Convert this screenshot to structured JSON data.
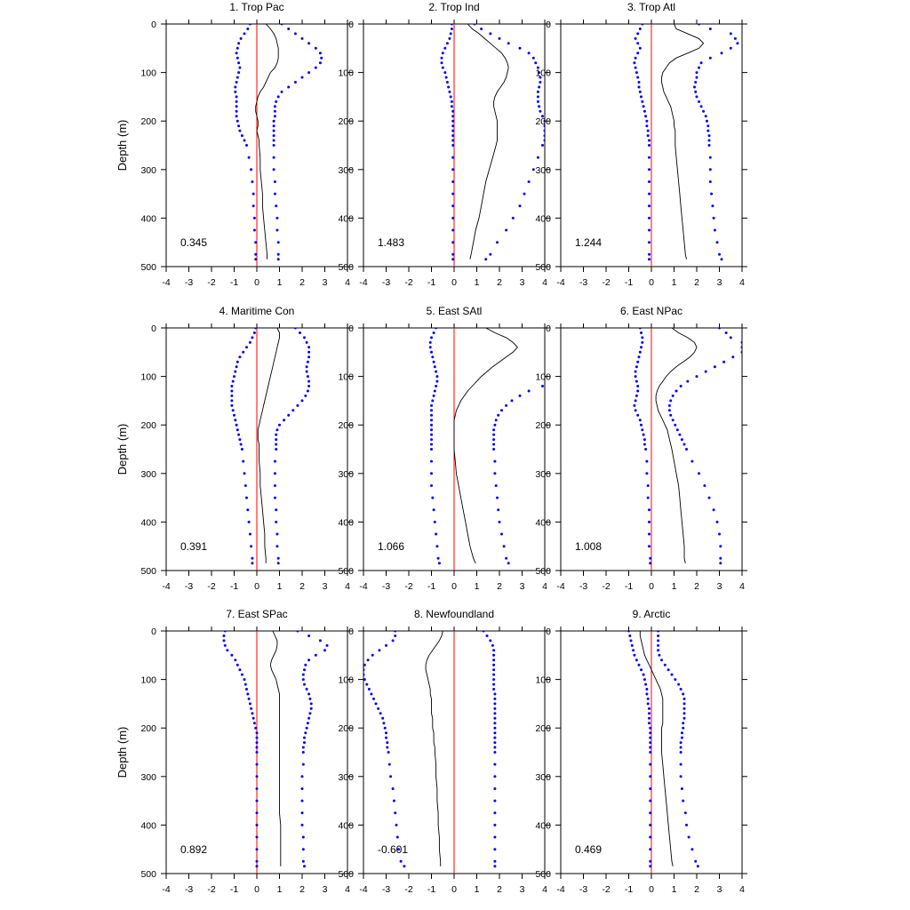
{
  "chart_data": {
    "type": "line",
    "figure_ylabel": "Depth (m)",
    "xlim": [
      -4,
      4
    ],
    "xticks": [
      -4,
      -3,
      -2,
      -1,
      0,
      1,
      2,
      3,
      4
    ],
    "ylim": [
      0,
      500
    ],
    "yticks": [
      0,
      100,
      200,
      300,
      400,
      500
    ],
    "y_inverted": true,
    "colors": {
      "mean": "#000000",
      "bounds": "#0000ff",
      "zero_line": "#ff0000"
    },
    "depth": [
      0,
      10,
      20,
      30,
      40,
      50,
      60,
      70,
      80,
      90,
      100,
      110,
      120,
      130,
      140,
      150,
      160,
      170,
      180,
      190,
      200,
      210,
      220,
      230,
      240,
      250,
      275,
      300,
      325,
      350,
      375,
      400,
      425,
      450,
      475,
      485
    ],
    "panels": [
      {
        "title": "1. Trop Pac",
        "annotation": "0.345",
        "show_ylabel": true,
        "mean": [
          0.4,
          0.6,
          0.75,
          0.85,
          0.9,
          0.95,
          0.95,
          0.95,
          0.9,
          0.8,
          0.6,
          0.5,
          0.4,
          0.3,
          0.15,
          0.05,
          0.0,
          -0.05,
          -0.05,
          0.0,
          0.05,
          0.05,
          0.0,
          0.05,
          0.1,
          0.1,
          0.15,
          0.15,
          0.2,
          0.25,
          0.25,
          0.3,
          0.35,
          0.4,
          0.45,
          0.45
        ],
        "upper": [
          1.1,
          1.4,
          1.7,
          2.0,
          2.3,
          2.6,
          2.8,
          2.85,
          2.8,
          2.6,
          2.3,
          2.0,
          1.7,
          1.4,
          1.1,
          0.95,
          0.85,
          0.8,
          0.8,
          0.8,
          0.75,
          0.75,
          0.75,
          0.75,
          0.75,
          0.75,
          0.75,
          0.75,
          0.8,
          0.8,
          0.85,
          0.9,
          0.9,
          0.95,
          0.95,
          0.95
        ],
        "lower": [
          -0.3,
          -0.4,
          -0.55,
          -0.7,
          -0.8,
          -0.85,
          -0.9,
          -0.85,
          -0.8,
          -0.75,
          -0.8,
          -0.85,
          -0.9,
          -0.95,
          -0.95,
          -0.9,
          -0.9,
          -0.9,
          -0.9,
          -0.9,
          -0.85,
          -0.8,
          -0.75,
          -0.65,
          -0.55,
          -0.45,
          -0.35,
          -0.25,
          -0.2,
          -0.15,
          -0.15,
          -0.1,
          -0.1,
          -0.05,
          -0.05,
          -0.05
        ]
      },
      {
        "title": "2. Trop Ind",
        "annotation": "1.483",
        "show_ylabel": false,
        "mean": [
          0.6,
          0.8,
          1.1,
          1.35,
          1.6,
          1.85,
          2.1,
          2.25,
          2.35,
          2.4,
          2.35,
          2.3,
          2.2,
          2.05,
          1.9,
          1.8,
          1.75,
          1.75,
          1.8,
          1.85,
          1.9,
          1.9,
          1.9,
          1.9,
          1.9,
          1.85,
          1.7,
          1.55,
          1.4,
          1.3,
          1.2,
          1.1,
          0.95,
          0.85,
          0.75,
          0.7
        ],
        "upper": [
          0.9,
          1.2,
          1.6,
          2.0,
          2.4,
          2.9,
          3.3,
          3.5,
          3.6,
          3.7,
          3.75,
          3.8,
          3.8,
          3.75,
          3.7,
          3.7,
          3.7,
          3.75,
          3.8,
          3.9,
          4.0,
          4.0,
          4.0,
          4.0,
          4.0,
          3.9,
          3.7,
          3.5,
          3.3,
          3.1,
          2.9,
          2.6,
          2.3,
          1.9,
          1.6,
          1.4
        ],
        "lower": [
          -0.1,
          -0.1,
          -0.15,
          -0.2,
          -0.3,
          -0.4,
          -0.5,
          -0.55,
          -0.55,
          -0.5,
          -0.4,
          -0.35,
          -0.3,
          -0.25,
          -0.2,
          -0.15,
          -0.1,
          -0.1,
          -0.05,
          -0.05,
          -0.05,
          -0.05,
          -0.05,
          -0.05,
          -0.05,
          -0.05,
          -0.05,
          -0.05,
          -0.05,
          -0.05,
          -0.05,
          -0.05,
          -0.05,
          -0.05,
          -0.05,
          -0.05
        ]
      },
      {
        "title": "3. Trop Atl",
        "annotation": "1.244",
        "show_ylabel": false,
        "mean": [
          1.0,
          1.1,
          1.6,
          2.1,
          2.3,
          2.1,
          1.6,
          1.1,
          0.8,
          0.65,
          0.5,
          0.45,
          0.45,
          0.5,
          0.55,
          0.65,
          0.75,
          0.85,
          0.9,
          0.95,
          1.0,
          1.0,
          1.05,
          1.05,
          1.05,
          1.05,
          1.1,
          1.15,
          1.2,
          1.25,
          1.3,
          1.35,
          1.4,
          1.45,
          1.5,
          1.55
        ],
        "upper": [
          2.1,
          2.6,
          3.5,
          3.7,
          3.8,
          3.5,
          3.1,
          2.6,
          2.2,
          2.1,
          2.0,
          2.0,
          1.95,
          1.9,
          1.95,
          2.0,
          2.1,
          2.2,
          2.3,
          2.4,
          2.45,
          2.5,
          2.5,
          2.55,
          2.55,
          2.55,
          2.6,
          2.6,
          2.6,
          2.65,
          2.7,
          2.75,
          2.8,
          2.9,
          3.0,
          3.1
        ],
        "lower": [
          -0.4,
          -0.5,
          -0.6,
          -0.7,
          -0.6,
          -0.5,
          -0.6,
          -0.7,
          -0.75,
          -0.7,
          -0.65,
          -0.6,
          -0.55,
          -0.55,
          -0.5,
          -0.45,
          -0.4,
          -0.35,
          -0.3,
          -0.25,
          -0.2,
          -0.2,
          -0.15,
          -0.15,
          -0.1,
          -0.1,
          -0.1,
          -0.1,
          -0.1,
          -0.1,
          -0.1,
          -0.1,
          -0.1,
          -0.1,
          -0.1,
          -0.1
        ]
      },
      {
        "title": "4. Maritime Con",
        "annotation": "0.391",
        "show_ylabel": true,
        "mean": [
          0.9,
          1.0,
          1.0,
          0.95,
          0.9,
          0.85,
          0.8,
          0.75,
          0.7,
          0.65,
          0.6,
          0.55,
          0.5,
          0.45,
          0.4,
          0.35,
          0.3,
          0.25,
          0.2,
          0.15,
          0.1,
          0.05,
          0.05,
          0.05,
          0.1,
          0.1,
          0.1,
          0.15,
          0.15,
          0.2,
          0.25,
          0.3,
          0.35,
          0.35,
          0.4,
          0.4
        ],
        "upper": [
          1.7,
          1.9,
          2.1,
          2.2,
          2.3,
          2.3,
          2.3,
          2.25,
          2.2,
          2.2,
          2.25,
          2.3,
          2.3,
          2.25,
          2.15,
          2.0,
          1.8,
          1.6,
          1.4,
          1.2,
          1.0,
          0.9,
          0.85,
          0.85,
          0.85,
          0.85,
          0.8,
          0.8,
          0.8,
          0.8,
          0.85,
          0.85,
          0.9,
          0.9,
          0.95,
          0.95
        ],
        "lower": [
          -0.05,
          -0.1,
          -0.2,
          -0.3,
          -0.45,
          -0.6,
          -0.75,
          -0.85,
          -0.9,
          -0.95,
          -1.0,
          -1.05,
          -1.1,
          -1.1,
          -1.1,
          -1.1,
          -1.1,
          -1.05,
          -1.0,
          -0.95,
          -0.9,
          -0.85,
          -0.8,
          -0.75,
          -0.7,
          -0.65,
          -0.6,
          -0.55,
          -0.5,
          -0.45,
          -0.4,
          -0.35,
          -0.3,
          -0.25,
          -0.2,
          -0.2
        ]
      },
      {
        "title": "5. East SAtl",
        "annotation": "1.066",
        "show_ylabel": false,
        "mean": [
          1.4,
          1.8,
          2.3,
          2.6,
          2.8,
          2.6,
          2.3,
          2.0,
          1.7,
          1.45,
          1.2,
          1.0,
          0.8,
          0.6,
          0.45,
          0.3,
          0.2,
          0.1,
          0.05,
          0.0,
          0.0,
          0.0,
          0.0,
          0.0,
          0.0,
          0.0,
          0.05,
          0.1,
          0.2,
          0.3,
          0.4,
          0.5,
          0.6,
          0.7,
          0.85,
          0.95
        ],
        "upper": [
          5.0,
          5.0,
          5.0,
          5.0,
          5.0,
          5.0,
          5.0,
          5.0,
          5.0,
          5.0,
          5.0,
          4.5,
          3.9,
          3.3,
          2.9,
          2.55,
          2.3,
          2.1,
          1.95,
          1.85,
          1.8,
          1.75,
          1.75,
          1.75,
          1.75,
          1.75,
          1.8,
          1.8,
          1.85,
          1.9,
          1.95,
          2.0,
          2.1,
          2.2,
          2.3,
          2.4
        ],
        "lower": [
          -0.8,
          -0.9,
          -1.0,
          -1.05,
          -1.05,
          -1.0,
          -0.95,
          -0.9,
          -0.85,
          -0.8,
          -0.75,
          -0.75,
          -0.8,
          -0.85,
          -0.9,
          -0.95,
          -1.0,
          -1.0,
          -1.0,
          -1.0,
          -1.0,
          -1.0,
          -1.0,
          -1.0,
          -1.0,
          -1.0,
          -1.0,
          -1.0,
          -1.0,
          -0.95,
          -0.9,
          -0.85,
          -0.8,
          -0.75,
          -0.7,
          -0.65
        ]
      },
      {
        "title": "6. East NPac",
        "annotation": "1.008",
        "show_ylabel": false,
        "mean": [
          0.9,
          1.2,
          1.6,
          1.9,
          2.0,
          1.9,
          1.7,
          1.4,
          1.1,
          0.85,
          0.65,
          0.5,
          0.35,
          0.25,
          0.2,
          0.2,
          0.25,
          0.3,
          0.4,
          0.5,
          0.6,
          0.7,
          0.75,
          0.8,
          0.85,
          0.9,
          1.0,
          1.1,
          1.2,
          1.25,
          1.3,
          1.35,
          1.4,
          1.45,
          1.45,
          1.5
        ],
        "upper": [
          3.0,
          3.3,
          3.5,
          4.0,
          4.0,
          4.0,
          3.6,
          3.2,
          2.8,
          2.4,
          2.0,
          1.6,
          1.3,
          1.1,
          0.95,
          0.85,
          0.8,
          0.8,
          0.85,
          0.95,
          1.05,
          1.15,
          1.25,
          1.35,
          1.45,
          1.55,
          1.8,
          2.1,
          2.35,
          2.55,
          2.75,
          2.9,
          3.0,
          3.05,
          3.05,
          3.05
        ],
        "lower": [
          -0.5,
          -0.45,
          -0.4,
          -0.4,
          -0.45,
          -0.5,
          -0.55,
          -0.6,
          -0.65,
          -0.7,
          -0.7,
          -0.65,
          -0.6,
          -0.6,
          -0.65,
          -0.7,
          -0.75,
          -0.7,
          -0.6,
          -0.5,
          -0.45,
          -0.4,
          -0.35,
          -0.3,
          -0.3,
          -0.25,
          -0.2,
          -0.2,
          -0.15,
          -0.15,
          -0.1,
          -0.1,
          -0.1,
          -0.1,
          -0.05,
          -0.05
        ]
      },
      {
        "title": "7. East SPac",
        "annotation": "0.892",
        "show_ylabel": true,
        "mean": [
          0.7,
          0.8,
          0.9,
          0.9,
          0.85,
          0.75,
          0.65,
          0.6,
          0.65,
          0.75,
          0.85,
          0.9,
          0.95,
          1.0,
          1.0,
          1.0,
          1.0,
          1.0,
          1.0,
          1.0,
          1.0,
          1.0,
          1.0,
          1.0,
          1.0,
          1.0,
          1.0,
          1.0,
          1.0,
          1.0,
          1.0,
          1.05,
          1.05,
          1.05,
          1.05,
          1.05
        ],
        "upper": [
          1.8,
          2.3,
          2.8,
          3.1,
          3.0,
          2.6,
          2.3,
          2.15,
          2.1,
          2.05,
          2.05,
          2.1,
          2.2,
          2.3,
          2.35,
          2.4,
          2.4,
          2.35,
          2.3,
          2.25,
          2.2,
          2.15,
          2.1,
          2.1,
          2.05,
          2.05,
          2.05,
          2.0,
          2.0,
          2.0,
          2.0,
          2.0,
          2.05,
          2.05,
          2.05,
          2.1
        ],
        "lower": [
          -1.4,
          -1.45,
          -1.45,
          -1.4,
          -1.3,
          -1.1,
          -0.95,
          -0.85,
          -0.75,
          -0.65,
          -0.55,
          -0.5,
          -0.45,
          -0.4,
          -0.35,
          -0.3,
          -0.25,
          -0.2,
          -0.15,
          -0.1,
          -0.05,
          0.0,
          0.0,
          0.0,
          0.0,
          0.0,
          0.0,
          0.0,
          0.0,
          0.0,
          0.0,
          0.0,
          0.0,
          0.0,
          0.0,
          0.0
        ]
      },
      {
        "title": "8. Newfoundland",
        "annotation": "-0.601",
        "show_ylabel": false,
        "mean": [
          -0.5,
          -0.55,
          -0.65,
          -0.8,
          -0.95,
          -1.1,
          -1.2,
          -1.25,
          -1.25,
          -1.2,
          -1.15,
          -1.1,
          -1.05,
          -1.05,
          -1.0,
          -1.0,
          -1.0,
          -1.0,
          -0.95,
          -0.95,
          -0.95,
          -0.9,
          -0.9,
          -0.9,
          -0.85,
          -0.85,
          -0.8,
          -0.8,
          -0.75,
          -0.75,
          -0.7,
          -0.7,
          -0.65,
          -0.65,
          -0.6,
          -0.6
        ],
        "upper": [
          1.3,
          1.45,
          1.6,
          1.7,
          1.75,
          1.75,
          1.75,
          1.75,
          1.75,
          1.75,
          1.75,
          1.75,
          1.75,
          1.8,
          1.8,
          1.8,
          1.8,
          1.8,
          1.8,
          1.8,
          1.8,
          1.8,
          1.8,
          1.8,
          1.8,
          1.8,
          1.8,
          1.8,
          1.8,
          1.8,
          1.8,
          1.8,
          1.8,
          1.8,
          1.8,
          1.8
        ],
        "lower": [
          -2.6,
          -2.6,
          -2.7,
          -3.0,
          -3.3,
          -3.6,
          -3.8,
          -3.95,
          -4.0,
          -4.0,
          -3.95,
          -3.85,
          -3.75,
          -3.65,
          -3.55,
          -3.45,
          -3.35,
          -3.25,
          -3.15,
          -3.1,
          -3.05,
          -3.0,
          -3.0,
          -2.95,
          -2.95,
          -2.9,
          -2.85,
          -2.8,
          -2.7,
          -2.65,
          -2.6,
          -2.55,
          -2.5,
          -2.45,
          -2.35,
          -2.2
        ]
      },
      {
        "title": "9. Arctic",
        "annotation": "0.469",
        "show_ylabel": false,
        "mean": [
          -0.5,
          -0.5,
          -0.45,
          -0.4,
          -0.35,
          -0.3,
          -0.2,
          -0.1,
          0.0,
          0.1,
          0.2,
          0.3,
          0.4,
          0.45,
          0.5,
          0.5,
          0.5,
          0.5,
          0.5,
          0.5,
          0.45,
          0.45,
          0.45,
          0.45,
          0.45,
          0.45,
          0.5,
          0.55,
          0.6,
          0.65,
          0.7,
          0.75,
          0.8,
          0.85,
          0.9,
          0.95
        ],
        "upper": [
          0.3,
          0.3,
          0.3,
          0.3,
          0.3,
          0.35,
          0.45,
          0.6,
          0.75,
          0.9,
          1.05,
          1.2,
          1.3,
          1.4,
          1.45,
          1.45,
          1.45,
          1.45,
          1.45,
          1.4,
          1.4,
          1.35,
          1.35,
          1.3,
          1.3,
          1.3,
          1.3,
          1.3,
          1.35,
          1.4,
          1.5,
          1.55,
          1.65,
          1.8,
          1.95,
          2.05
        ],
        "lower": [
          -1.0,
          -0.95,
          -0.9,
          -0.85,
          -0.8,
          -0.75,
          -0.65,
          -0.55,
          -0.45,
          -0.35,
          -0.3,
          -0.25,
          -0.2,
          -0.2,
          -0.15,
          -0.15,
          -0.1,
          -0.1,
          -0.1,
          -0.1,
          -0.05,
          -0.05,
          -0.05,
          -0.05,
          -0.05,
          -0.05,
          -0.05,
          -0.05,
          -0.05,
          -0.05,
          -0.05,
          -0.05,
          -0.05,
          -0.05,
          -0.05,
          -0.05
        ]
      }
    ]
  }
}
